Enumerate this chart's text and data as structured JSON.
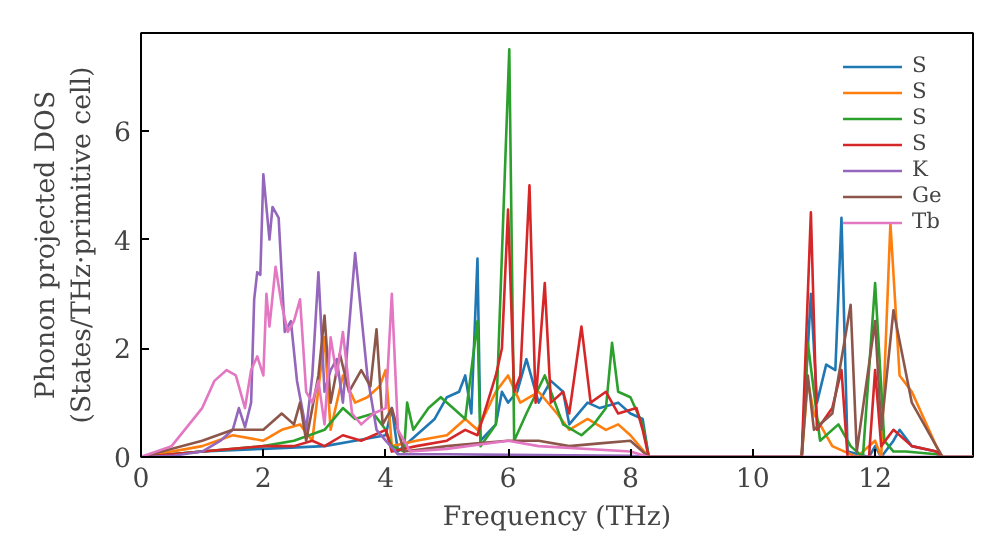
{
  "chart_data": {
    "type": "line",
    "xlabel": "Frequency (THz)",
    "ylabel": "Phonon projected DOS\n(States/THz·primitive cell)",
    "xlim": [
      0,
      13.6
    ],
    "ylim": [
      0,
      7.8
    ],
    "xticks": [
      0,
      2,
      4,
      6,
      8,
      10,
      12
    ],
    "yticks": [
      0,
      2,
      4,
      6
    ],
    "grid": false,
    "legend": "top right",
    "marker": "none",
    "line_style": "solid",
    "series": [
      {
        "name": "S",
        "color": "#1f77b4",
        "x": [
          0,
          1,
          2,
          3,
          3.5,
          4,
          4.1,
          4.2,
          4.5,
          4.8,
          5.0,
          5.2,
          5.3,
          5.4,
          5.5,
          5.55,
          5.8,
          5.9,
          6.0,
          6.15,
          6.3,
          6.5,
          6.7,
          6.9,
          7.0,
          7.3,
          7.5,
          7.8,
          8.0,
          8.2,
          8.3,
          10.8,
          10.95,
          11.05,
          11.2,
          11.35,
          11.45,
          11.55,
          11.9,
          12.0,
          12.1,
          12.3,
          12.4,
          12.6,
          13.0
        ],
        "values": [
          0,
          0.1,
          0.15,
          0.2,
          0.3,
          0.4,
          0.9,
          0.1,
          0.4,
          0.7,
          1.1,
          1.2,
          1.5,
          0.8,
          3.65,
          0.3,
          0.6,
          1.2,
          1.0,
          1.2,
          1.8,
          1.0,
          1.4,
          1.2,
          0.6,
          1.0,
          0.9,
          1.0,
          0.8,
          0.7,
          0,
          0,
          3.0,
          1.0,
          1.7,
          1.6,
          4.4,
          0.1,
          0,
          0.2,
          0,
          0.3,
          0.5,
          0.2,
          0.1
        ]
      },
      {
        "name": "S",
        "color": "#ff7f0e",
        "x": [
          0,
          1,
          1.5,
          2,
          2.3,
          2.6,
          2.8,
          3.0,
          3.1,
          3.3,
          3.5,
          3.7,
          3.9,
          4.0,
          4.1,
          4.5,
          5.0,
          5.3,
          5.5,
          5.8,
          6.0,
          6.2,
          6.5,
          6.8,
          7.0,
          7.3,
          7.6,
          7.8,
          8.0,
          8.3,
          10.8,
          10.9,
          11.0,
          11.3,
          11.5,
          11.7,
          12.0,
          12.1,
          12.25,
          12.4,
          12.6,
          13.0,
          13.1,
          13.6
        ],
        "values": [
          0,
          0.2,
          0.4,
          0.3,
          0.5,
          0.6,
          0.3,
          2.2,
          0.5,
          1.5,
          1.0,
          1.1,
          1.3,
          1.6,
          0.2,
          0.3,
          0.4,
          0.7,
          0.5,
          1.2,
          1.5,
          1.0,
          1.2,
          0.8,
          0.5,
          0.7,
          0.5,
          0.6,
          0.4,
          0,
          0,
          1.4,
          0.8,
          0.2,
          0.1,
          0,
          0.3,
          0,
          4.3,
          1.5,
          1.2,
          0.2,
          0,
          0
        ]
      },
      {
        "name": "S",
        "color": "#2ca02c",
        "x": [
          0,
          1,
          2,
          2.5,
          3.0,
          3.3,
          3.5,
          3.8,
          4.0,
          4.1,
          4.3,
          4.35,
          4.45,
          4.7,
          4.9,
          5.1,
          5.3,
          5.5,
          5.55,
          5.8,
          6.02,
          6.1,
          6.3,
          6.6,
          6.9,
          7.2,
          7.4,
          7.6,
          7.7,
          7.8,
          8.0,
          8.2,
          8.3,
          10.8,
          10.9,
          11.1,
          11.4,
          11.6,
          11.8,
          12.0,
          12.15,
          12.3,
          12.5,
          13.0,
          13.1,
          13.6
        ],
        "values": [
          0,
          0.1,
          0.2,
          0.3,
          0.5,
          0.9,
          0.7,
          0.8,
          0.5,
          0.2,
          0.1,
          1.0,
          0.5,
          0.9,
          1.1,
          0.9,
          0.7,
          2.5,
          0.2,
          0.6,
          7.5,
          0.3,
          0.8,
          1.5,
          0.6,
          0.4,
          0.6,
          0.9,
          2.1,
          1.2,
          1.1,
          0.6,
          0,
          0,
          2.1,
          0.3,
          0.6,
          0.2,
          0,
          3.2,
          0.3,
          0.1,
          0.1,
          0.05,
          0,
          0
        ]
      },
      {
        "name": "S",
        "color": "#d62728",
        "x": [
          0,
          1,
          2,
          2.5,
          2.8,
          3.0,
          3.3,
          3.6,
          4.0,
          4.1,
          4.5,
          5.0,
          5.3,
          5.5,
          5.8,
          5.9,
          6.0,
          6.1,
          6.2,
          6.35,
          6.45,
          6.6,
          6.7,
          6.9,
          7.0,
          7.2,
          7.35,
          7.6,
          7.8,
          8.1,
          8.2,
          8.3,
          10.8,
          10.95,
          11.05,
          11.3,
          11.45,
          11.55,
          11.9,
          12.0,
          12.1,
          12.3,
          12.6,
          13.0,
          13.1,
          13.6
        ],
        "values": [
          0,
          0.1,
          0.2,
          0.2,
          0.3,
          0.2,
          0.4,
          0.3,
          0.5,
          0.1,
          0.2,
          0.3,
          0.5,
          0.4,
          1.5,
          2.0,
          4.55,
          1.2,
          1.5,
          5.0,
          1.0,
          3.2,
          1.0,
          1.2,
          0.8,
          2.4,
          1.0,
          1.2,
          0.8,
          0.9,
          0.5,
          0,
          0,
          4.5,
          0.5,
          0.9,
          1.6,
          0,
          0,
          1.6,
          0.2,
          0.5,
          0.2,
          0.1,
          0,
          0
        ]
      },
      {
        "name": "K",
        "color": "#9467bd",
        "x": [
          0,
          0.5,
          1,
          1.3,
          1.5,
          1.6,
          1.7,
          1.8,
          1.85,
          1.9,
          1.95,
          2.0,
          2.1,
          2.15,
          2.25,
          2.35,
          2.45,
          2.55,
          2.7,
          2.8,
          2.9,
          3.0,
          3.1,
          3.2,
          3.3,
          3.5,
          3.7,
          3.85,
          4.0,
          4.2,
          5,
          8,
          8.3,
          13.6
        ],
        "values": [
          0,
          0.02,
          0.1,
          0.3,
          0.5,
          0.9,
          0.55,
          1.0,
          2.9,
          3.4,
          3.35,
          5.2,
          4.0,
          4.6,
          4.4,
          2.3,
          2.5,
          1.4,
          0.5,
          1.5,
          3.4,
          1.2,
          1.6,
          1.8,
          1.0,
          3.75,
          1.5,
          0.5,
          0.3,
          0.05,
          0.05,
          0.02,
          0,
          0
        ]
      },
      {
        "name": "Ge",
        "color": "#8c564b",
        "x": [
          0,
          1,
          1.5,
          2,
          2.3,
          2.5,
          2.6,
          2.7,
          2.9,
          3.0,
          3.1,
          3.25,
          3.4,
          3.6,
          3.75,
          3.85,
          3.95,
          4.1,
          4.3,
          5,
          5.5,
          6,
          6.5,
          7,
          7.5,
          8,
          8.3,
          10.8,
          10.9,
          11.0,
          11.3,
          11.6,
          11.7,
          12.0,
          12.1,
          12.3,
          12.6,
          13.0,
          13.1,
          13.6
        ],
        "values": [
          0,
          0.3,
          0.5,
          0.5,
          0.8,
          0.6,
          1.0,
          0.3,
          1.5,
          2.6,
          1.0,
          1.9,
          1.2,
          1.6,
          1.3,
          2.35,
          0.6,
          0.9,
          0.1,
          0.2,
          0.25,
          0.3,
          0.3,
          0.2,
          0.25,
          0.3,
          0,
          0,
          1.5,
          0.5,
          0.8,
          2.8,
          0.1,
          2.5,
          0.5,
          2.7,
          1.0,
          0.2,
          0,
          0
        ]
      },
      {
        "name": "Tb",
        "color": "#e377c2",
        "x": [
          0,
          0.5,
          1,
          1.2,
          1.4,
          1.55,
          1.7,
          1.8,
          1.9,
          2.0,
          2.05,
          2.1,
          2.2,
          2.3,
          2.4,
          2.5,
          2.6,
          2.7,
          2.8,
          2.9,
          3.0,
          3.1,
          3.2,
          3.3,
          3.45,
          3.6,
          3.8,
          4.0,
          4.1,
          4.2,
          4.4,
          5,
          6,
          6.5,
          8,
          8.3,
          13.6
        ],
        "values": [
          0,
          0.2,
          0.9,
          1.4,
          1.6,
          1.5,
          0.9,
          1.6,
          1.85,
          1.5,
          3.0,
          2.4,
          3.5,
          2.8,
          2.3,
          2.5,
          2.9,
          1.2,
          1.0,
          1.4,
          0.6,
          2.2,
          1.5,
          2.3,
          0.8,
          0.6,
          0.8,
          0.9,
          3.0,
          0.5,
          0.1,
          0.15,
          0.3,
          0.2,
          0.1,
          0,
          0
        ]
      }
    ]
  }
}
